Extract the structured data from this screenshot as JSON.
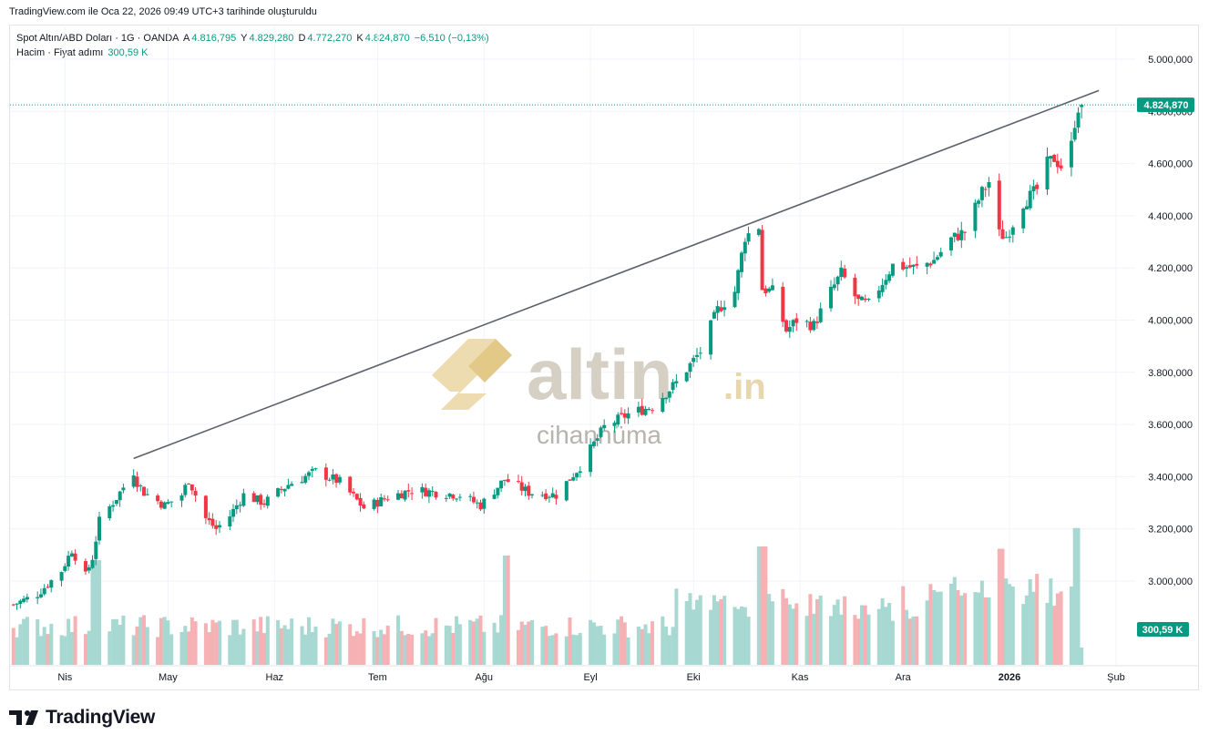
{
  "caption": "TradingView.com ile Oca 22, 2026 09:49 UTC+3 tarihinde oluşturuldu",
  "legend": {
    "symbol": "Spot Altın/ABD Doları · 1G · OANDA",
    "open_label": "A",
    "open_value": "4.816,795",
    "high_label": "Y",
    "high_value": "4.829,280",
    "low_label": "D",
    "low_value": "4.772,270",
    "close_label": "K",
    "close_value": "4.824,870",
    "change": "−6,510 (−0,13%)",
    "volume_label": "Hacim · Fiyat adımı",
    "volume_value": "300,59 K"
  },
  "colors": {
    "up": "#089981",
    "down": "#f23645",
    "up_volume": "#a7d8d2",
    "down_volume": "#f5b1b4",
    "trendline": "#5d606b",
    "watermark": "#d6d0c4",
    "watermark_accent": "#e8d7ac"
  },
  "watermark": {
    "brand": "altin",
    "suffix": ".in",
    "tagline": "cihannüma"
  },
  "footer": {
    "brand": "TradingView"
  },
  "chart_data": {
    "type": "candlestick",
    "y_axis": {
      "ticks": [
        "5.000,000",
        "4.800,000",
        "4.600,000",
        "4.400,000",
        "4.200,000",
        "4.000,000",
        "3.800,000",
        "3.600,000",
        "3.400,000",
        "3.200,000",
        "3.000,000"
      ],
      "tick_values": [
        5000,
        4800,
        4600,
        4400,
        4200,
        4000,
        3800,
        3600,
        3400,
        3200,
        3000
      ],
      "range": [
        2880,
        5130
      ]
    },
    "x_axis": {
      "labels": [
        "Nis",
        "May",
        "Haz",
        "Tem",
        "Ağu",
        "Eyl",
        "Eki",
        "Kas",
        "Ara",
        "2026",
        "Şub"
      ],
      "label_dates": [
        "2025-04-01",
        "2025-05-01",
        "2025-06-01",
        "2025-07-01",
        "2025-08-01",
        "2025-09-01",
        "2025-10-01",
        "2025-11-01",
        "2025-12-01",
        "2026-01-01",
        "2026-02-01"
      ],
      "range": [
        "2025-03-16",
        "2026-02-05"
      ]
    },
    "last_price_label": "4.824,870",
    "volume_label": "300,59 K",
    "trendline": {
      "from": {
        "date": "2025-04-21",
        "price": 3470
      },
      "to": {
        "date": "2026-01-27",
        "price": 4880
      }
    },
    "price_path": [
      [
        "2025-03-17",
        2910
      ],
      [
        "2025-03-24",
        2950
      ],
      [
        "2025-03-31",
        3040
      ],
      [
        "2025-04-03",
        3120
      ],
      [
        "2025-04-07",
        3020
      ],
      [
        "2025-04-09",
        3090
      ],
      [
        "2025-04-11",
        3230
      ],
      [
        "2025-04-16",
        3320
      ],
      [
        "2025-04-21",
        3420
      ],
      [
        "2025-04-22",
        3380
      ],
      [
        "2025-04-24",
        3340
      ],
      [
        "2025-04-30",
        3290
      ],
      [
        "2025-05-05",
        3330
      ],
      [
        "2025-05-07",
        3390
      ],
      [
        "2025-05-12",
        3240
      ],
      [
        "2025-05-15",
        3200
      ],
      [
        "2025-05-19",
        3250
      ],
      [
        "2025-05-23",
        3330
      ],
      [
        "2025-05-29",
        3300
      ],
      [
        "2025-06-05",
        3370
      ],
      [
        "2025-06-13",
        3420
      ],
      [
        "2025-06-20",
        3380
      ],
      [
        "2025-06-27",
        3280
      ],
      [
        "2025-07-04",
        3320
      ],
      [
        "2025-07-11",
        3350
      ],
      [
        "2025-07-18",
        3340
      ],
      [
        "2025-07-25",
        3330
      ],
      [
        "2025-07-31",
        3290
      ],
      [
        "2025-08-07",
        3390
      ],
      [
        "2025-08-14",
        3340
      ],
      [
        "2025-08-22",
        3330
      ],
      [
        "2025-08-29",
        3440
      ],
      [
        "2025-09-05",
        3590
      ],
      [
        "2025-09-12",
        3640
      ],
      [
        "2025-09-19",
        3670
      ],
      [
        "2025-09-26",
        3760
      ],
      [
        "2025-10-03",
        3880
      ],
      [
        "2025-10-08",
        4040
      ],
      [
        "2025-10-13",
        4110
      ],
      [
        "2025-10-16",
        4320
      ],
      [
        "2025-10-20",
        4360
      ],
      [
        "2025-10-21",
        4120
      ],
      [
        "2025-10-24",
        4110
      ],
      [
        "2025-10-28",
        3960
      ],
      [
        "2025-10-31",
        4000
      ],
      [
        "2025-11-05",
        3980
      ],
      [
        "2025-11-10",
        4110
      ],
      [
        "2025-11-13",
        4180
      ],
      [
        "2025-11-18",
        4070
      ],
      [
        "2025-11-21",
        4060
      ],
      [
        "2025-11-28",
        4210
      ],
      [
        "2025-12-05",
        4200
      ],
      [
        "2025-12-10",
        4230
      ],
      [
        "2025-12-15",
        4310
      ],
      [
        "2025-12-19",
        4340
      ],
      [
        "2025-12-24",
        4490
      ],
      [
        "2025-12-26",
        4530
      ],
      [
        "2025-12-29",
        4330
      ],
      [
        "2025-12-31",
        4320
      ],
      [
        "2026-01-05",
        4450
      ],
      [
        "2026-01-09",
        4500
      ],
      [
        "2026-01-12",
        4600
      ],
      [
        "2026-01-14",
        4620
      ],
      [
        "2026-01-16",
        4590
      ],
      [
        "2026-01-19",
        4670
      ],
      [
        "2026-01-20",
        4760
      ],
      [
        "2026-01-21",
        4816
      ],
      [
        "2026-01-22",
        4825
      ]
    ],
    "volume_range": [
      0,
      300000
    ],
    "volume_peaks": [
      [
        "2025-04-10",
        230000
      ],
      [
        "2025-08-08",
        240000
      ],
      [
        "2025-10-21",
        260000
      ],
      [
        "2025-12-29",
        255000
      ],
      [
        "2026-01-21",
        300590
      ]
    ]
  }
}
